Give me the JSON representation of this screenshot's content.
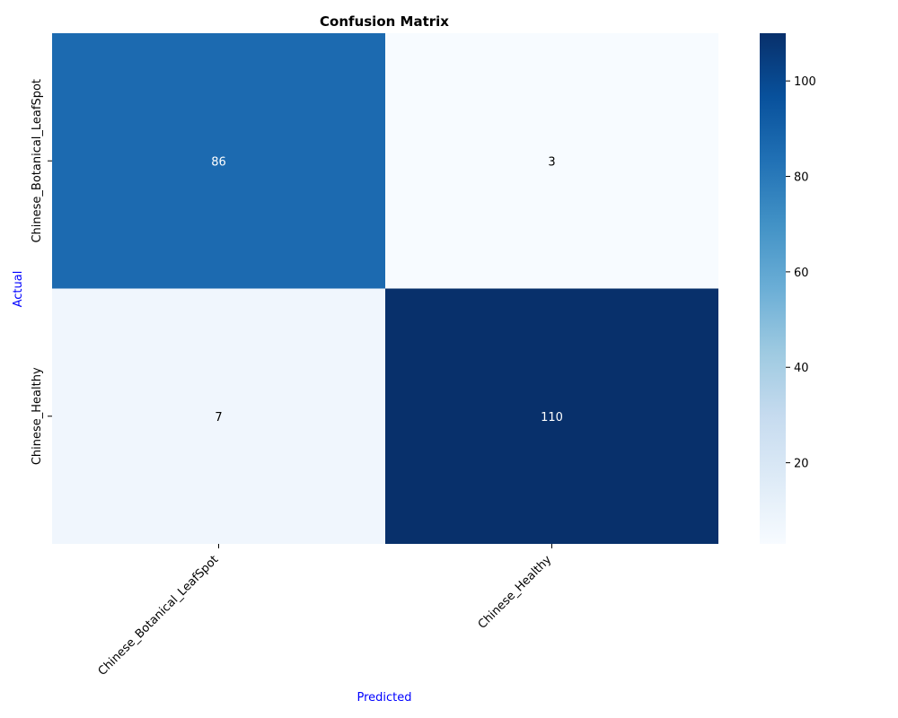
{
  "chart_data": {
    "type": "heatmap",
    "title": "Confusion Matrix",
    "xlabel": "Predicted",
    "ylabel": "Actual",
    "x_categories": [
      "Chinese_Botanical_LeafSpot",
      "Chinese_Healthy"
    ],
    "y_categories": [
      "Chinese_Botanical_LeafSpot",
      "Chinese_Healthy"
    ],
    "values": [
      [
        86,
        3
      ],
      [
        7,
        110
      ]
    ],
    "colormap": "Blues",
    "colorbar": {
      "min": 3,
      "max": 110,
      "ticks": [
        20,
        40,
        60,
        80,
        100
      ]
    },
    "colors": {
      "axis_label": "#0000ff",
      "annotation_light": "#ffffff",
      "annotation_dark": "#000000"
    },
    "grid": false
  }
}
